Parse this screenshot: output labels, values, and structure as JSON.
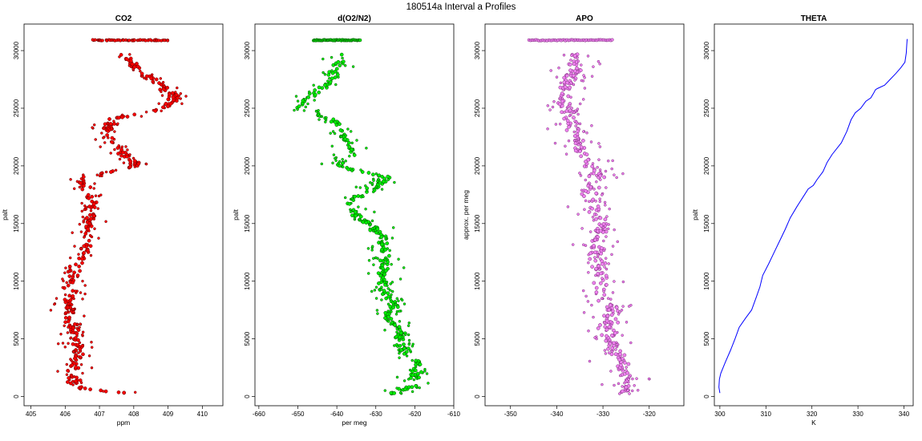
{
  "figure_title": "180514a   Interval a Profiles",
  "chart_data": [
    {
      "type": "scatter",
      "title": "CO2",
      "xlabel": "ppm",
      "ylabel": "palt",
      "xlim": [
        404.8,
        410.6
      ],
      "ylim": [
        -800,
        32300
      ],
      "xticks": [
        405,
        406,
        407,
        408,
        409,
        410
      ],
      "yticks": [
        0,
        5000,
        10000,
        15000,
        20000,
        25000,
        30000
      ],
      "color": "#ff0000",
      "edge_color": "#5a0000",
      "top_strip": {
        "y": 30900,
        "x_range": [
          406.8,
          409.0
        ]
      },
      "profile": [
        [
          408.0,
          200
        ],
        [
          406.3,
          800
        ],
        [
          406.2,
          2000
        ],
        [
          406.3,
          3000
        ],
        [
          406.4,
          4000
        ],
        [
          406.3,
          5000
        ],
        [
          406.2,
          6000
        ],
        [
          406.1,
          7000
        ],
        [
          406.1,
          8000
        ],
        [
          406.1,
          9000
        ],
        [
          406.2,
          10000
        ],
        [
          406.3,
          11000
        ],
        [
          406.5,
          12000
        ],
        [
          406.6,
          13000
        ],
        [
          406.7,
          14000
        ],
        [
          406.7,
          15000
        ],
        [
          406.8,
          16000
        ],
        [
          406.8,
          17000
        ],
        [
          406.6,
          18000
        ],
        [
          406.5,
          19000
        ],
        [
          408.1,
          20000
        ],
        [
          407.7,
          21000
        ],
        [
          407.4,
          22000
        ],
        [
          407.2,
          23000
        ],
        [
          407.3,
          24000
        ],
        [
          409.0,
          25000
        ],
        [
          409.2,
          26000
        ],
        [
          408.8,
          27000
        ],
        [
          408.3,
          28000
        ],
        [
          407.9,
          29000
        ],
        [
          407.7,
          29700
        ]
      ],
      "spread": 0.45
    },
    {
      "type": "scatter",
      "title": "d(O2/N2)",
      "xlabel": "per meg",
      "ylabel": "palt",
      "xlim": [
        -661,
        -610
      ],
      "ylim": [
        -800,
        32300
      ],
      "xticks": [
        -660,
        -650,
        -640,
        -630,
        -620,
        -610
      ],
      "yticks": [
        0,
        5000,
        10000,
        15000,
        20000,
        25000,
        30000
      ],
      "color": "#00ee00",
      "edge_color": "#004d00",
      "top_strip": {
        "y": 30900,
        "x_range": [
          -646,
          -634
        ]
      },
      "profile": [
        [
          -627,
          200
        ],
        [
          -619,
          1000
        ],
        [
          -620,
          2000
        ],
        [
          -619,
          3000
        ],
        [
          -623,
          4000
        ],
        [
          -624,
          5000
        ],
        [
          -624,
          6000
        ],
        [
          -627,
          7000
        ],
        [
          -625,
          8000
        ],
        [
          -628,
          9000
        ],
        [
          -629,
          10000
        ],
        [
          -628,
          11000
        ],
        [
          -628,
          12000
        ],
        [
          -628,
          13000
        ],
        [
          -628,
          14000
        ],
        [
          -632,
          15000
        ],
        [
          -636,
          16000
        ],
        [
          -637,
          17000
        ],
        [
          -631,
          18000
        ],
        [
          -627,
          19000
        ],
        [
          -640,
          20000
        ],
        [
          -636,
          21000
        ],
        [
          -637,
          22000
        ],
        [
          -639,
          23000
        ],
        [
          -641,
          24000
        ],
        [
          -650,
          25000
        ],
        [
          -647,
          26000
        ],
        [
          -643,
          27000
        ],
        [
          -641,
          28000
        ],
        [
          -639,
          29000
        ],
        [
          -639,
          29700
        ]
      ],
      "spread": 4.0
    },
    {
      "type": "scatter",
      "title": "APO",
      "xlabel": "",
      "ylabel": "approx. per meg",
      "xlim": [
        -355.5,
        -312.5
      ],
      "ylim": [
        -800,
        32300
      ],
      "xticks": [
        -350,
        -340,
        -330,
        -320
      ],
      "yticks": [
        0,
        5000,
        10000,
        15000,
        20000,
        25000,
        30000
      ],
      "color": "#ee82ee",
      "edge_color": "#7a2a7a",
      "top_strip": {
        "y": 30900,
        "x_range": [
          -346,
          -328
        ]
      },
      "profile": [
        [
          -326,
          200
        ],
        [
          -325,
          1500
        ],
        [
          -326,
          3000
        ],
        [
          -328,
          4500
        ],
        [
          -329,
          6000
        ],
        [
          -328,
          7500
        ],
        [
          -330,
          9000
        ],
        [
          -330,
          10500
        ],
        [
          -331,
          12000
        ],
        [
          -331,
          13500
        ],
        [
          -330,
          15000
        ],
        [
          -332,
          16500
        ],
        [
          -333,
          18000
        ],
        [
          -331,
          19500
        ],
        [
          -334,
          21000
        ],
        [
          -336,
          22500
        ],
        [
          -337,
          24000
        ],
        [
          -339,
          25500
        ],
        [
          -338,
          27000
        ],
        [
          -336,
          28500
        ],
        [
          -335,
          29700
        ]
      ],
      "spread": 5.0
    },
    {
      "type": "line",
      "title": "THETA",
      "xlabel": "K",
      "ylabel": "palt",
      "xlim": [
        298.8,
        342.0
      ],
      "ylim": [
        -800,
        32300
      ],
      "xticks": [
        300,
        310,
        320,
        330,
        340
      ],
      "yticks": [
        0,
        5000,
        10000,
        15000,
        20000,
        25000,
        30000
      ],
      "color": "#0000ff",
      "x": [
        300.0,
        299.8,
        299.9,
        300.2,
        301.2,
        302.3,
        303.3,
        304.2,
        305.6,
        306.9,
        307.8,
        308.7,
        309.3,
        310.6,
        311.8,
        313.0,
        314.2,
        315.3,
        316.8,
        318.4,
        319.2,
        320.3,
        321.1,
        322.4,
        323.3,
        324.4,
        326.4,
        327.6,
        328.5,
        329.4,
        330.6,
        331.7,
        332.8,
        333.4,
        333.8,
        334.2,
        335.8,
        337.0,
        338.2,
        339.3,
        340.2,
        340.5,
        340.6,
        340.7
      ],
      "y": [
        300,
        800,
        1500,
        2000,
        3000,
        4000,
        5000,
        6000,
        6800,
        7500,
        8500,
        9500,
        10500,
        11500,
        12500,
        13500,
        14500,
        15500,
        16500,
        17500,
        18000,
        18300,
        18800,
        19500,
        20300,
        21000,
        22000,
        23000,
        24000,
        24600,
        25000,
        25600,
        25900,
        26300,
        26600,
        26700,
        27000,
        27500,
        28000,
        28500,
        29000,
        29800,
        30500,
        31000
      ]
    }
  ]
}
